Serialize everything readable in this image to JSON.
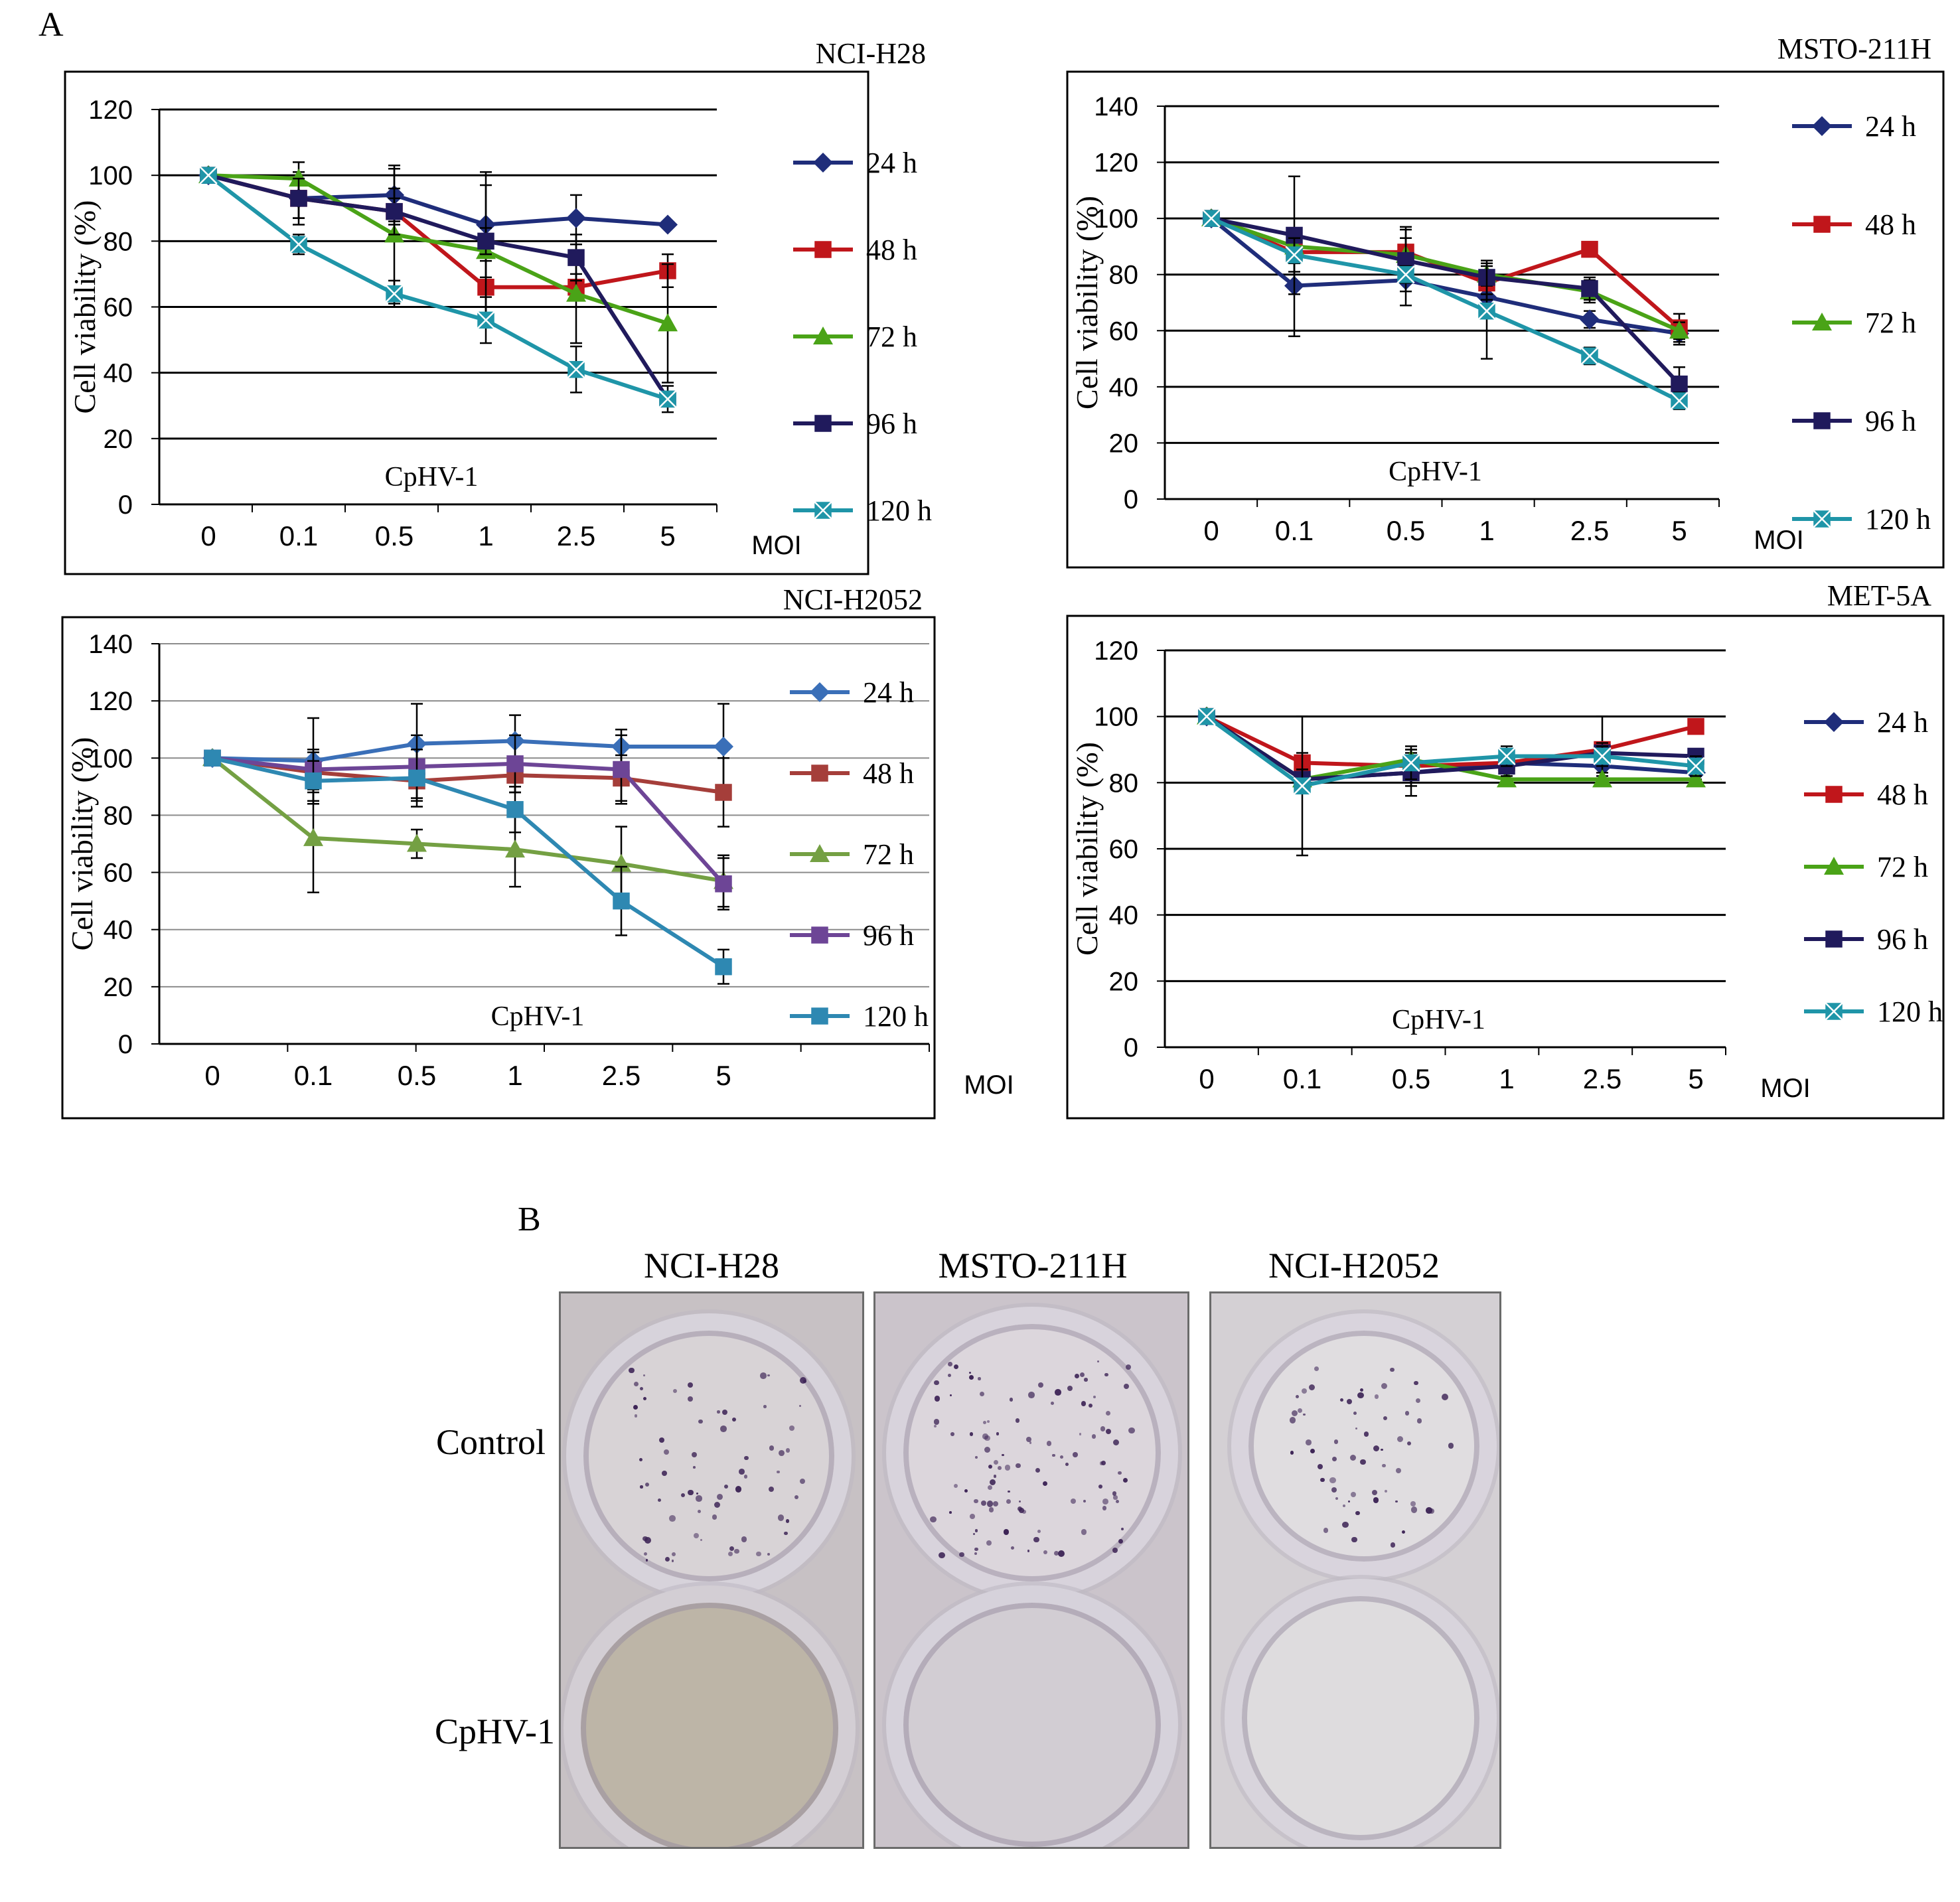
{
  "figure": {
    "panel_a_label": "A",
    "panel_b_label": "B"
  },
  "chart_data": [
    {
      "type": "line",
      "title": "NCI-H28",
      "ylabel": "Cell viability (%)",
      "xlabel": "MOI",
      "annotation": "CpHV-1",
      "categories": [
        "0",
        "0.1",
        "0.5",
        "1",
        "2.5",
        "5"
      ],
      "ylim": [
        0,
        120
      ],
      "yticks": [
        0,
        20,
        40,
        60,
        80,
        100,
        120
      ],
      "grid": true,
      "legend_position": "right",
      "series": [
        {
          "name": "24 h",
          "color": "#1f2d7a",
          "marker": "diamond",
          "values": [
            100,
            93,
            94,
            85,
            87,
            85
          ],
          "errors": [
            0,
            8,
            8,
            16,
            7,
            0
          ]
        },
        {
          "name": "48 h",
          "color": "#c0161b",
          "marker": "square",
          "values": [
            100,
            93,
            89,
            66,
            66,
            71
          ],
          "errors": [
            0,
            6,
            4,
            8,
            4,
            5
          ]
        },
        {
          "name": "72 h",
          "color": "#4aa317",
          "marker": "triangle",
          "values": [
            100,
            99,
            82,
            77,
            64,
            55
          ],
          "errors": [
            0,
            5,
            21,
            20,
            15,
            18
          ]
        },
        {
          "name": "96 h",
          "color": "#201a5c",
          "marker": "square",
          "values": [
            100,
            93,
            89,
            80,
            75,
            32
          ],
          "errors": [
            0,
            6,
            7,
            4,
            7,
            4
          ]
        },
        {
          "name": "120 h",
          "color": "#1f95a8",
          "marker": "x-square",
          "values": [
            100,
            79,
            64,
            56,
            41,
            32
          ],
          "errors": [
            0,
            3,
            4,
            7,
            7,
            0
          ]
        }
      ]
    },
    {
      "type": "line",
      "title": "MSTO-211H",
      "ylabel": "Cell viability (%)",
      "xlabel": "MOI",
      "annotation": "CpHV-1",
      "categories": [
        "0",
        "0.1",
        "0.5",
        "1",
        "2.5",
        "5"
      ],
      "ylim": [
        0,
        140
      ],
      "yticks": [
        0,
        20,
        40,
        60,
        80,
        100,
        120,
        140
      ],
      "grid": true,
      "legend_position": "right",
      "series": [
        {
          "name": "24 h",
          "color": "#1f2d7a",
          "marker": "diamond",
          "values": [
            100,
            76,
            78,
            72,
            64,
            59
          ],
          "errors": [
            0,
            18,
            9,
            5,
            3,
            4
          ]
        },
        {
          "name": "48 h",
          "color": "#c0161b",
          "marker": "square",
          "values": [
            100,
            88,
            88,
            77,
            89,
            61
          ],
          "errors": [
            0,
            4,
            9,
            6,
            2,
            5
          ]
        },
        {
          "name": "72 h",
          "color": "#4aa317",
          "marker": "triangle",
          "values": [
            100,
            90,
            87,
            80,
            74,
            60
          ],
          "errors": [
            0,
            4,
            6,
            4,
            4,
            3
          ]
        },
        {
          "name": "96 h",
          "color": "#201a5c",
          "marker": "square",
          "values": [
            100,
            94,
            85,
            79,
            75,
            41
          ],
          "errors": [
            0,
            21,
            11,
            6,
            4,
            6
          ]
        },
        {
          "name": "120 h",
          "color": "#1f95a8",
          "marker": "x-square",
          "values": [
            100,
            87,
            80,
            67,
            51,
            35
          ],
          "errors": [
            0,
            6,
            3,
            17,
            3,
            3
          ]
        }
      ]
    },
    {
      "type": "line",
      "title": "NCI-H2052",
      "ylabel": "Cell viability (%)",
      "xlabel": "MOI",
      "annotation": "CpHV-1",
      "categories": [
        "0",
        "0.1",
        "0.5",
        "1",
        "2.5",
        "5"
      ],
      "ylim": [
        0,
        140
      ],
      "yticks": [
        0,
        20,
        40,
        60,
        80,
        100,
        120,
        140
      ],
      "grid": true,
      "legend_position": "right",
      "series": [
        {
          "name": "24 h",
          "color": "#3a6fb8",
          "marker": "diamond",
          "values": [
            100,
            99,
            105,
            106,
            104,
            104
          ],
          "errors": [
            0,
            15,
            14,
            9,
            6,
            15
          ]
        },
        {
          "name": "48 h",
          "color": "#a53e3a",
          "marker": "square",
          "values": [
            100,
            95,
            92,
            94,
            93,
            88
          ],
          "errors": [
            0,
            7,
            7,
            6,
            8,
            12
          ]
        },
        {
          "name": "72 h",
          "color": "#74a043",
          "marker": "triangle",
          "values": [
            100,
            72,
            70,
            68,
            63,
            57
          ],
          "errors": [
            0,
            19,
            5,
            13,
            13,
            9
          ]
        },
        {
          "name": "96 h",
          "color": "#6d4596",
          "marker": "square",
          "values": [
            100,
            96,
            97,
            98,
            96,
            56
          ],
          "errors": [
            0,
            7,
            11,
            10,
            12,
            9
          ]
        },
        {
          "name": "120 h",
          "color": "#2e88b2",
          "marker": "square",
          "values": [
            100,
            92,
            93,
            82,
            50,
            27
          ],
          "errors": [
            0,
            7,
            10,
            8,
            12,
            6
          ]
        }
      ]
    },
    {
      "type": "line",
      "title": "MET-5A",
      "ylabel": "Cell viability (%)",
      "xlabel": "MOI",
      "annotation": "CpHV-1",
      "categories": [
        "0",
        "0.1",
        "0.5",
        "1",
        "2.5",
        "5"
      ],
      "ylim": [
        0,
        120
      ],
      "yticks": [
        0,
        20,
        40,
        60,
        80,
        100,
        120
      ],
      "grid": true,
      "legend_position": "right",
      "series": [
        {
          "name": "24 h",
          "color": "#1f2d7a",
          "marker": "diamond",
          "values": [
            100,
            81,
            83,
            86,
            85,
            83
          ],
          "errors": [
            0,
            3,
            4,
            3,
            3,
            2
          ]
        },
        {
          "name": "48 h",
          "color": "#c0161b",
          "marker": "square",
          "values": [
            100,
            86,
            85,
            86,
            90,
            97
          ],
          "errors": [
            0,
            3,
            4,
            3,
            10,
            2
          ]
        },
        {
          "name": "72 h",
          "color": "#4aa317",
          "marker": "triangle",
          "values": [
            100,
            81,
            87,
            81,
            81,
            81
          ],
          "errors": [
            0,
            3,
            3,
            2,
            2,
            2
          ]
        },
        {
          "name": "96 h",
          "color": "#201a5c",
          "marker": "square",
          "values": [
            100,
            81,
            83,
            85,
            89,
            88
          ],
          "errors": [
            0,
            3,
            7,
            3,
            3,
            2
          ]
        },
        {
          "name": "120 h",
          "color": "#1f95a8",
          "marker": "x-square",
          "values": [
            100,
            79,
            86,
            88,
            88,
            85
          ],
          "errors": [
            0,
            21,
            5,
            3,
            3,
            3
          ]
        }
      ]
    }
  ],
  "photos": {
    "columns": [
      "NCI-H28",
      "MSTO-211H",
      "NCI-H2052"
    ],
    "rows": [
      "Control",
      "CpHV-1"
    ]
  }
}
